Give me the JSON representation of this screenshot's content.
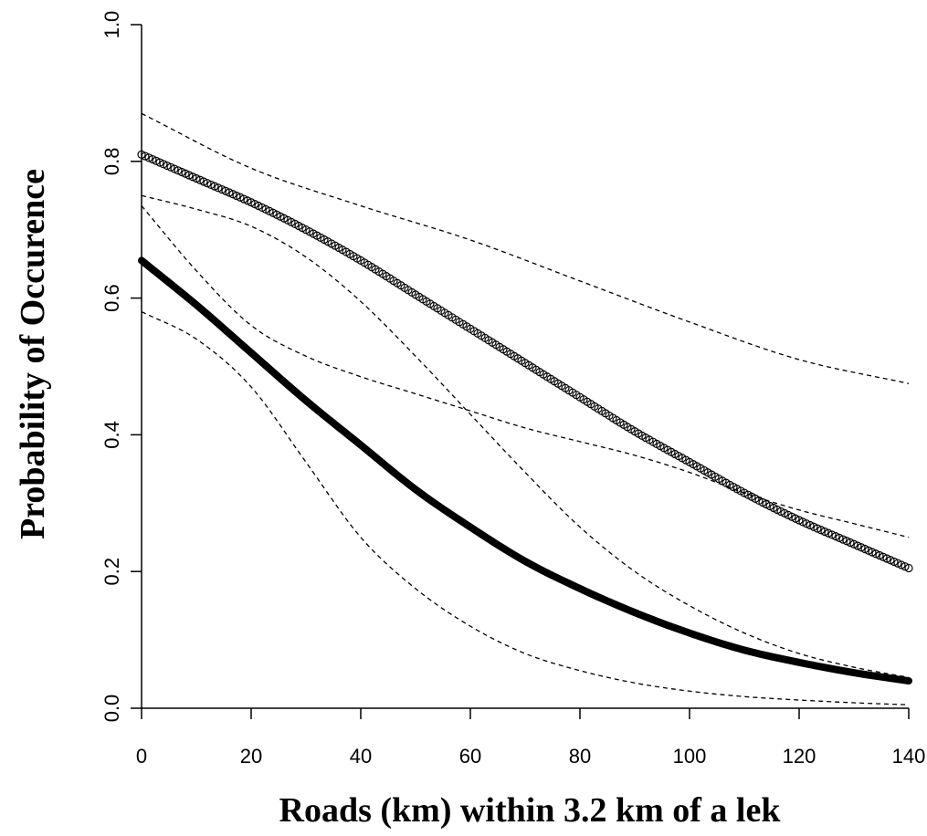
{
  "chart_data": {
    "type": "line",
    "title": "",
    "xlabel": "Roads (km) within 3.2 km  of a lek",
    "ylabel": "Probability of Occurence",
    "xlim": [
      0,
      140
    ],
    "ylim": [
      0,
      1
    ],
    "xticks": [
      0,
      20,
      40,
      60,
      80,
      100,
      120,
      140
    ],
    "xtick_labels": [
      "0",
      "20",
      "40",
      "60",
      "80",
      "100",
      "120",
      "140"
    ],
    "yticks": [
      0,
      0.2,
      0.4,
      0.6,
      0.8,
      1.0
    ],
    "ytick_labels": [
      "0.0",
      "0.2",
      "0.4",
      "0.6",
      "0.8",
      "1.0"
    ],
    "grid": false,
    "legend": "none",
    "series": [
      {
        "style": "open-circles",
        "color": "#000000",
        "x": [
          0,
          10,
          20,
          30,
          40,
          50,
          60,
          70,
          80,
          90,
          100,
          110,
          120,
          130,
          140
        ],
        "y": [
          0.81,
          0.775,
          0.74,
          0.7,
          0.655,
          0.605,
          0.555,
          0.505,
          0.455,
          0.405,
          0.36,
          0.315,
          0.275,
          0.24,
          0.205
        ]
      },
      {
        "style": "thick-solid",
        "color": "#000000",
        "x": [
          0,
          10,
          20,
          30,
          40,
          50,
          60,
          70,
          80,
          90,
          100,
          110,
          120,
          130,
          140
        ],
        "y": [
          0.655,
          0.59,
          0.52,
          0.45,
          0.385,
          0.32,
          0.265,
          0.215,
          0.175,
          0.14,
          0.11,
          0.085,
          0.067,
          0.052,
          0.04
        ]
      },
      {
        "style": "dashed",
        "color": "#000000",
        "x": [
          0,
          20,
          40,
          60,
          80,
          100,
          120,
          140
        ],
        "y": [
          0.87,
          0.79,
          0.735,
          0.685,
          0.625,
          0.565,
          0.51,
          0.475
        ]
      },
      {
        "style": "dashed",
        "color": "#000000",
        "x": [
          0,
          10,
          20,
          30,
          40,
          50,
          60,
          70,
          80,
          90,
          100,
          110,
          120,
          130,
          140
        ],
        "y": [
          0.75,
          0.73,
          0.705,
          0.66,
          0.595,
          0.515,
          0.43,
          0.345,
          0.265,
          0.2,
          0.15,
          0.11,
          0.08,
          0.06,
          0.045
        ]
      },
      {
        "style": "dashed",
        "color": "#000000",
        "x": [
          0,
          10,
          20,
          30,
          40,
          50,
          60,
          70,
          80,
          90,
          100,
          110,
          120,
          130,
          140
        ],
        "y": [
          0.735,
          0.64,
          0.56,
          0.515,
          0.485,
          0.46,
          0.435,
          0.41,
          0.39,
          0.37,
          0.345,
          0.315,
          0.29,
          0.27,
          0.25
        ]
      },
      {
        "style": "dashed",
        "color": "#000000",
        "x": [
          0,
          10,
          20,
          30,
          40,
          50,
          60,
          70,
          80,
          90,
          100,
          110,
          120,
          130,
          140
        ],
        "y": [
          0.58,
          0.54,
          0.47,
          0.36,
          0.25,
          0.175,
          0.12,
          0.08,
          0.055,
          0.037,
          0.025,
          0.017,
          0.012,
          0.008,
          0.005
        ]
      }
    ]
  }
}
